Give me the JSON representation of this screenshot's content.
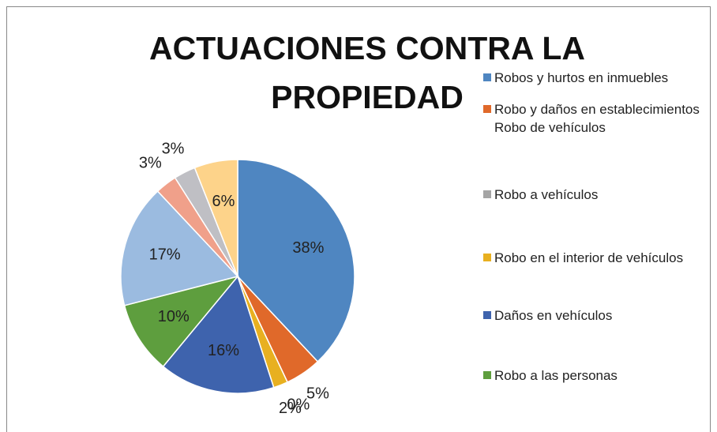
{
  "chart_data": {
    "type": "pie",
    "title": "ACTUACIONES CONTRA LA PROPIEDAD",
    "categories": [
      "Robos y hurtos en inmuebles",
      "Robo y daños en establecimientos Robo de vehículos",
      "Robo a vehículos",
      "Robo en el interior de vehículos",
      "Daños en vehículos",
      "Robo a las personas",
      null,
      null,
      null,
      null
    ],
    "values": [
      38,
      5,
      0,
      2,
      16,
      10,
      17,
      3,
      3,
      6
    ],
    "value_labels": [
      "38%",
      "5%",
      "0%",
      "2%",
      "16%",
      "10%",
      "17%",
      "3%",
      "3%",
      "6%"
    ],
    "colors": [
      "#4f86c1",
      "#e0692a",
      "#a5a5a5",
      "#e8b020",
      "#3e63ad",
      "#5e9e3e",
      "#9bbbe0",
      "#f0a08a",
      "#bfbfc4",
      "#fdd38a"
    ],
    "legend": "right"
  }
}
